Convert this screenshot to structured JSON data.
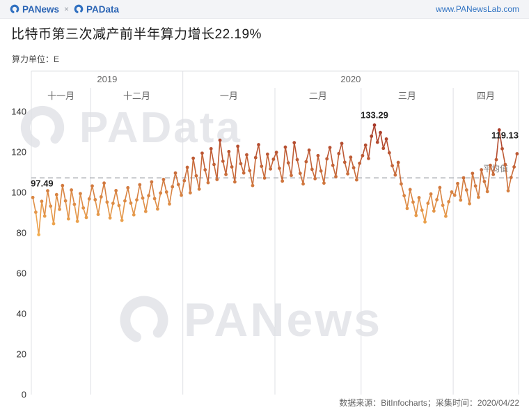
{
  "header": {
    "brand_left": "PANews",
    "separator": "×",
    "brand_right": "PAData",
    "url": "www.PANewsLab.com"
  },
  "title": "比特币第三次减产前半年算力增长22.19%",
  "unit_label": "算力单位：E",
  "watermark_top": "PAData",
  "watermark_bottom": "PANews",
  "footer": {
    "source_text": "数据来源：BitInfocharts；采集时间：2020/04/22"
  },
  "chart_data": {
    "type": "line",
    "title": "比特币第三次减产前半年算力增长22.19%",
    "xlabel": "",
    "ylabel": "算力单位：E",
    "ylim": [
      0,
      140
    ],
    "yticks": [
      0,
      20,
      40,
      60,
      80,
      100,
      120,
      140
    ],
    "grid": "vertical-month-dividers-only",
    "legend": "none",
    "years": [
      {
        "label": "2019",
        "month_span": 2
      },
      {
        "label": "2020",
        "month_span": 4
      }
    ],
    "months": [
      {
        "label": "十一月",
        "days": 20
      },
      {
        "label": "十二月",
        "days": 31
      },
      {
        "label": "一月",
        "days": 31
      },
      {
        "label": "二月",
        "days": 29
      },
      {
        "label": "三月",
        "days": 31
      },
      {
        "label": "四月",
        "days": 22
      }
    ],
    "average": {
      "value": 107.2,
      "label": "平均值"
    },
    "color_scale": {
      "low": "#F6B252",
      "high": "#A63628",
      "min": 78,
      "max": 134
    },
    "annotations": [
      {
        "index": 0,
        "text": "97.49",
        "align": "start",
        "dy": -16
      },
      {
        "index": 115,
        "text": "133.29",
        "align": "middle",
        "dy": -10
      },
      {
        "index": 163,
        "text": "119.13",
        "align": "end",
        "dy": -22
      }
    ],
    "values": [
      97.49,
      90.2,
      79.1,
      95.6,
      88.3,
      100.8,
      93.2,
      84.5,
      98.9,
      91.6,
      103.4,
      95.8,
      86.9,
      101.2,
      94.1,
      85.7,
      99.4,
      92.3,
      87.6,
      96.8,
      103.2,
      96.4,
      89.1,
      97.8,
      104.6,
      95.2,
      87.4,
      94.6,
      100.9,
      93.5,
      86.2,
      95.8,
      102.3,
      94.7,
      88.9,
      96.3,
      103.8,
      97.2,
      90.6,
      98.4,
      105.2,
      96.9,
      91.8,
      99.7,
      106.4,
      100.2,
      94.3,
      102.8,
      109.6,
      103.9,
      98.6,
      105.8,
      112.4,
      99.8,
      116.9,
      108.2,
      101.6,
      119.4,
      111.2,
      104.8,
      121.6,
      113.8,
      106.4,
      125.8,
      115.4,
      108.9,
      120.2,
      112.6,
      105.2,
      122.8,
      114.2,
      109.6,
      118.6,
      110.8,
      103.4,
      117.2,
      123.6,
      112.9,
      107.1,
      118.9,
      111.6,
      116.4,
      119.8,
      111.9,
      105.6,
      122.4,
      114.6,
      108.4,
      124.6,
      116.2,
      109.4,
      104.2,
      115.2,
      120.9,
      111.4,
      106.8,
      118.2,
      110.6,
      104.6,
      116.6,
      122.2,
      113.4,
      107.8,
      119.2,
      124.2,
      114.9,
      109.2,
      117.4,
      112.2,
      106.2,
      114.4,
      118.2,
      123.4,
      116.8,
      127.8,
      133.29,
      124.8,
      129.6,
      121.8,
      126.4,
      119.6,
      113.2,
      108.6,
      114.8,
      104.2,
      98.4,
      92.1,
      101.4,
      95.2,
      88.6,
      97.4,
      91.2,
      85.4,
      94.6,
      99.2,
      90.8,
      96.4,
      102.4,
      93.6,
      88.2,
      95.4,
      100.2,
      98.6,
      104.4,
      96.2,
      107.2,
      101.2,
      94.4,
      109.4,
      103.2,
      97.6,
      111.2,
      105.4,
      100.4,
      113.4,
      108.9,
      116.2,
      130.9,
      121.6,
      113.8,
      100.8,
      107.4,
      112.6,
      119.13
    ]
  }
}
